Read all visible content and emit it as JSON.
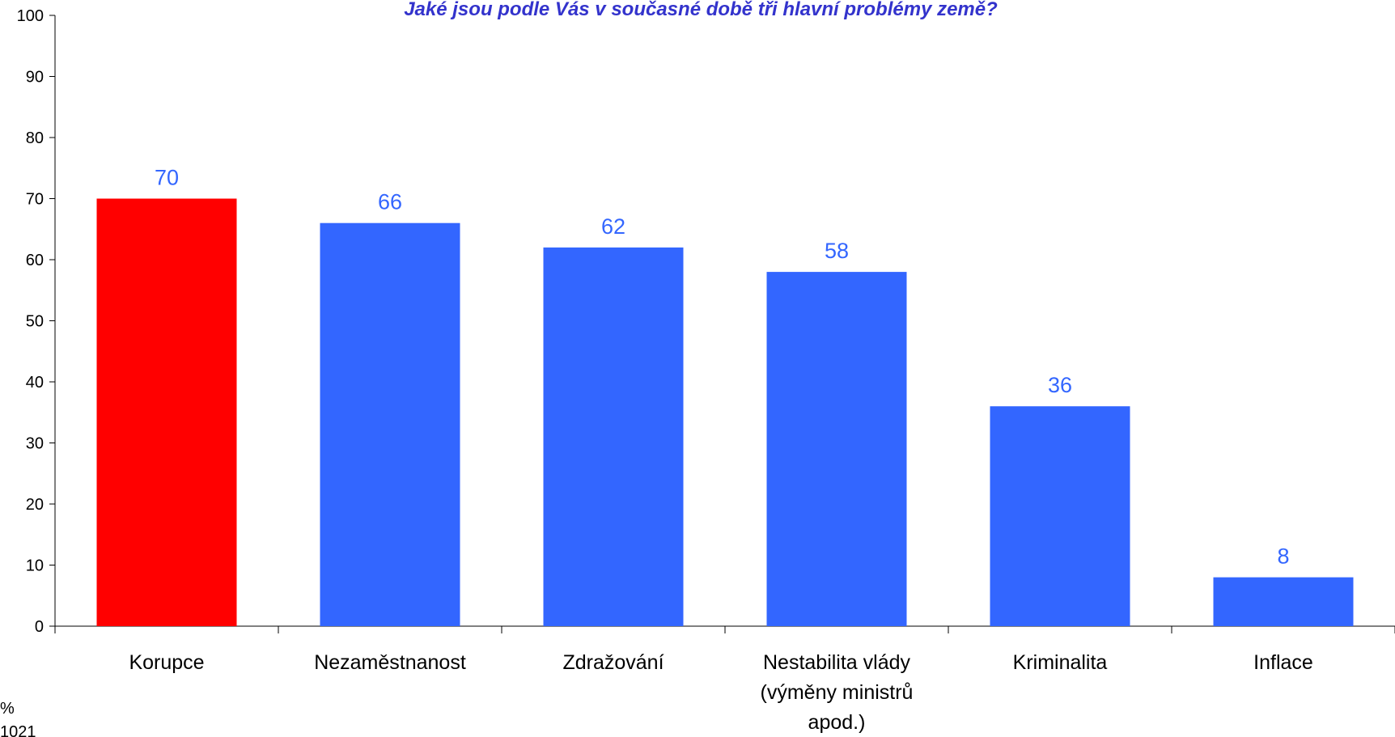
{
  "chart_data": {
    "type": "bar",
    "title": "Jaké jsou podle Vás v současné době tři hlavní problémy země?",
    "categories": [
      [
        "Korupce"
      ],
      [
        "Nezaměstnanost"
      ],
      [
        "Zdražování"
      ],
      [
        "Nestabilita vlády",
        "(výměny ministrů",
        "apod.)"
      ],
      [
        "Kriminalita"
      ],
      [
        "Inflace"
      ]
    ],
    "values": [
      70,
      66,
      62,
      58,
      36,
      8
    ],
    "bar_colors": [
      "#ff0000",
      "#3366ff",
      "#3366ff",
      "#3366ff",
      "#3366ff",
      "#3366ff"
    ],
    "label_color": "#3366ff",
    "title_color": "#3333cc",
    "ylim": [
      0,
      100
    ],
    "yticks": [
      0,
      10,
      20,
      30,
      40,
      50,
      60,
      70,
      80,
      90,
      100
    ],
    "xlabel": "",
    "ylabel": "",
    "grid": false,
    "footnote": [
      "%",
      "1021"
    ]
  }
}
